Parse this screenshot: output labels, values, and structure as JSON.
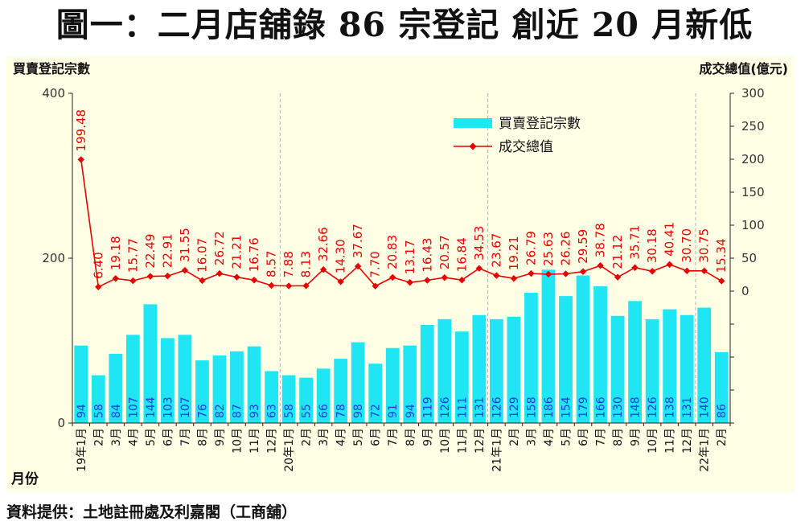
{
  "title": "圖一：二月店舖錄 86 宗登記  創近 20 月新低",
  "source": "資料提供：土地註冊處及利嘉閣（工商舖）",
  "colors": {
    "bar": "#1fe6f2",
    "line": "#e60000",
    "label": "#e60000",
    "background": "#ffffe6",
    "bar_label": "#1f3fd8"
  },
  "chart_data": {
    "type": "bar",
    "left_axis_title": "買賣登記宗數",
    "right_axis_title": "成交總值(億元)",
    "x_axis_title": "月份",
    "categories": [
      "19年1月",
      "2月",
      "3月",
      "4月",
      "5月",
      "6月",
      "7月",
      "8月",
      "9月",
      "10月",
      "11月",
      "12月",
      "20年1月",
      "2月",
      "3月",
      "4月",
      "5月",
      "6月",
      "7月",
      "8月",
      "9月",
      "10月",
      "11月",
      "12月",
      "21年1月",
      "2月",
      "3月",
      "4月",
      "5月",
      "6月",
      "7月",
      "8月",
      "9月",
      "10月",
      "11月",
      "12月",
      "22年1月",
      "2月"
    ],
    "left_ticks": [
      "0",
      "200",
      "400"
    ],
    "right_ticks": [
      "0",
      "50",
      "100",
      "150",
      "200",
      "250",
      "300"
    ],
    "ylim_left": [
      0,
      400
    ],
    "ylim_right": [
      -200,
      300
    ],
    "legend_position": "top-center",
    "series": [
      {
        "name": "買賣登記宗數",
        "type": "bar",
        "axis": "left",
        "values": [
          94,
          58,
          84,
          107,
          144,
          103,
          107,
          76,
          82,
          87,
          93,
          63,
          58,
          55,
          66,
          78,
          98,
          72,
          91,
          94,
          119,
          126,
          111,
          131,
          126,
          129,
          158,
          186,
          154,
          179,
          166,
          130,
          148,
          126,
          138,
          131,
          140,
          86
        ]
      },
      {
        "name": "成交總值",
        "type": "line",
        "axis": "right",
        "values": [
          199.48,
          6.4,
          19.18,
          15.77,
          22.49,
          22.91,
          31.55,
          16.07,
          26.72,
          21.21,
          16.76,
          8.57,
          7.88,
          8.13,
          32.66,
          14.3,
          37.67,
          7.7,
          20.83,
          13.17,
          16.43,
          20.57,
          16.84,
          34.53,
          23.67,
          19.21,
          26.79,
          25.63,
          26.26,
          29.59,
          38.78,
          21.12,
          35.71,
          30.18,
          40.41,
          30.7,
          30.75,
          15.34
        ],
        "labels": [
          "199.48",
          "6.40",
          "19.18",
          "15.77",
          "22.49",
          "22.91",
          "31.55",
          "16.07",
          "26.72",
          "21.21",
          "16.76",
          "8.57",
          "7.88",
          "8.13",
          "32.66",
          "14.30",
          "37.67",
          "7.70",
          "20.83",
          "13.17",
          "16.43",
          "20.57",
          "16.84",
          "34.53",
          "23.67",
          "19.21",
          "26.79",
          "25.63",
          "26.26",
          "29.59",
          "38.78",
          "21.12",
          "35.71",
          "30.18",
          "40.41",
          "30.70",
          "30.75",
          "15.34"
        ]
      }
    ]
  }
}
